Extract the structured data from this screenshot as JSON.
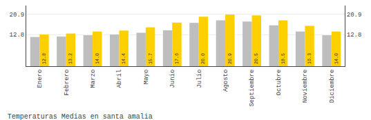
{
  "chart_data": {
    "type": "bar",
    "title": "Temperaturas Medias en santa amalia",
    "categories": [
      "Enero",
      "Febrero",
      "Marzo",
      "Abril",
      "Mayo",
      "Junio",
      "Julio",
      "Agosto",
      "Septiembre",
      "Octubre",
      "Noviembre",
      "Diciembre"
    ],
    "series": [
      {
        "color": "#BEBEBE",
        "values": [
          11.8,
          12.0,
          12.5,
          12.8,
          13.5,
          14.5,
          17.5,
          18.5,
          18.0,
          16.5,
          14.0,
          12.5
        ]
      },
      {
        "color": "#FFD000",
        "values": [
          12.8,
          13.2,
          14.0,
          14.4,
          15.7,
          17.6,
          20.0,
          20.9,
          20.5,
          18.5,
          16.3,
          14.0
        ],
        "value_labels": [
          "12.8",
          "13.2",
          "14.0",
          "14.4",
          "15.7",
          "17.6",
          "20.0",
          "20.9",
          "20.5",
          "18.5",
          "16.3",
          "14.0"
        ],
        "data_labels": true
      }
    ],
    "ylim": [
      0,
      24.5
    ],
    "yticks": [
      12.8,
      20.9
    ],
    "y2lim": [
      0,
      24.5
    ],
    "y2ticks": [
      12.8,
      20.9
    ],
    "grid": true
  }
}
